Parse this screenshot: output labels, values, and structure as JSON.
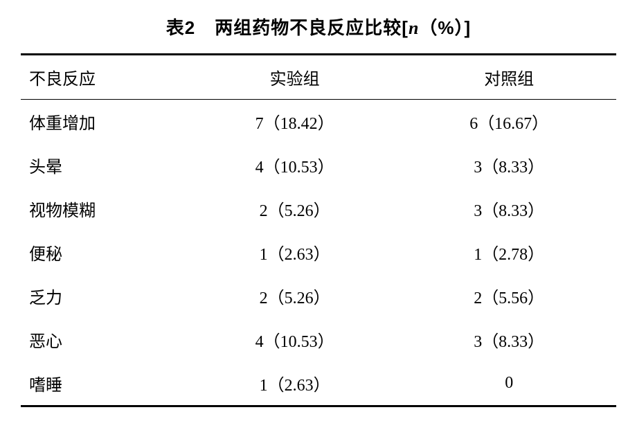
{
  "title_prefix": "表2",
  "title_main": "两组药物不良反应比较[",
  "title_italic": "n",
  "title_suffix": "（%）]",
  "columns": [
    "不良反应",
    "实验组",
    "对照组"
  ],
  "rows": [
    [
      "体重增加",
      "7（18.42）",
      "6（16.67）"
    ],
    [
      "头晕",
      "4（10.53）",
      "3（8.33）"
    ],
    [
      "视物模糊",
      "2（5.26）",
      "3（8.33）"
    ],
    [
      "便秘",
      "1（2.63）",
      "1（2.78）"
    ],
    [
      "乏力",
      "2（5.26）",
      "2（5.56）"
    ],
    [
      "恶心",
      "4（10.53）",
      "3（8.33）"
    ],
    [
      "嗜睡",
      "1（2.63）",
      "0"
    ]
  ],
  "colors": {
    "background": "#ffffff",
    "text": "#000000",
    "border": "#000000"
  },
  "typography": {
    "title_fontsize": 26,
    "body_fontsize": 24,
    "title_font": "SimHei",
    "body_font": "SimSun"
  }
}
